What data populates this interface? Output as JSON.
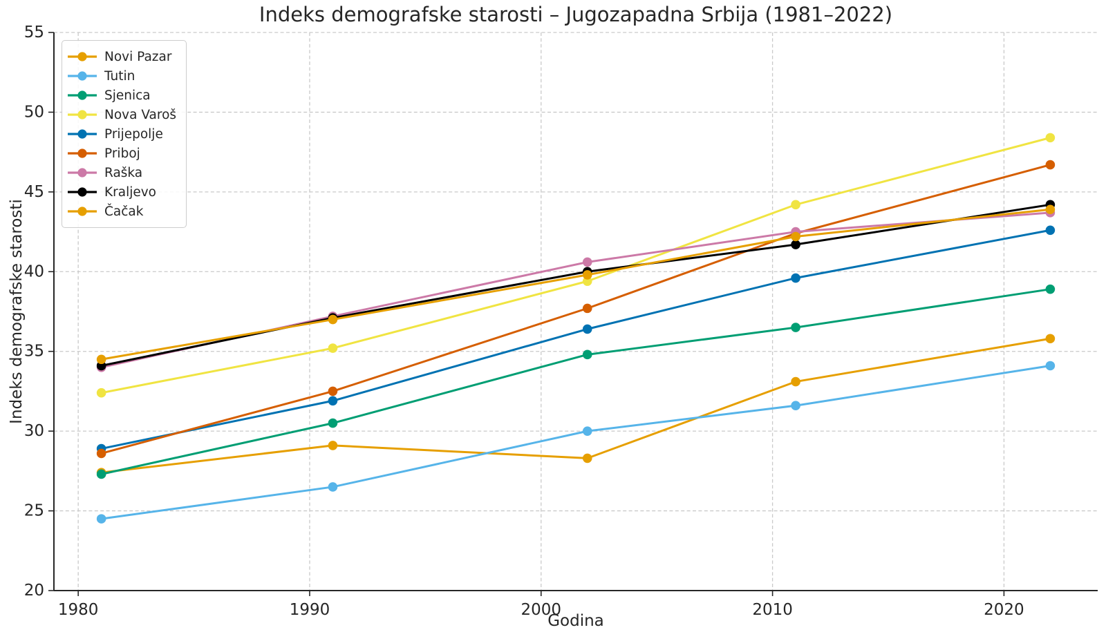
{
  "chart_data": {
    "type": "line",
    "title": "Indeks demografske starosti – Jugozapadna Srbija (1981–2022)",
    "xlabel": "Godina",
    "ylabel": "Indeks demografske starosti",
    "x": [
      1981,
      1991,
      2002,
      2011,
      2022
    ],
    "xticks": [
      "1980",
      "1990",
      "2000",
      "2010",
      "2020"
    ],
    "xtick_values": [
      1980,
      1990,
      2000,
      2010,
      2020
    ],
    "yticks": [
      "20",
      "25",
      "30",
      "35",
      "40",
      "45",
      "50",
      "55"
    ],
    "ytick_values": [
      20,
      25,
      30,
      35,
      40,
      45,
      50,
      55
    ],
    "xlim": [
      1978.95,
      2024.05
    ],
    "ylim": [
      20,
      55
    ],
    "grid": "dashed-both-axes",
    "legend_position": "upper-left",
    "series": [
      {
        "name": "Novi Pazar",
        "color": "#E69F00",
        "values": [
          27.4,
          29.1,
          28.3,
          33.1,
          35.8
        ]
      },
      {
        "name": "Tutin",
        "color": "#56B4E9",
        "values": [
          24.5,
          26.5,
          30.0,
          31.6,
          34.1
        ]
      },
      {
        "name": "Sjenica",
        "color": "#009E73",
        "values": [
          27.3,
          30.5,
          34.8,
          36.5,
          38.9
        ]
      },
      {
        "name": "Nova Varoš",
        "color": "#F0E442",
        "values": [
          32.4,
          35.2,
          39.4,
          44.2,
          48.4
        ]
      },
      {
        "name": "Prijepolje",
        "color": "#0072B2",
        "values": [
          28.9,
          31.9,
          36.4,
          39.6,
          42.6
        ]
      },
      {
        "name": "Priboj",
        "color": "#D55E00",
        "values": [
          28.6,
          32.5,
          37.7,
          42.4,
          46.7
        ]
      },
      {
        "name": "Raška",
        "color": "#CC79A7",
        "values": [
          34.0,
          37.2,
          40.6,
          42.5,
          43.7
        ]
      },
      {
        "name": "Kraljevo",
        "color": "#000000",
        "values": [
          34.1,
          37.1,
          40.0,
          41.7,
          44.2
        ]
      },
      {
        "name": "Čačak",
        "color": "#E69F00",
        "values": [
          34.5,
          37.0,
          39.8,
          42.2,
          43.9
        ]
      }
    ],
    "colors": {
      "grid": "#c9c9c9",
      "spine": "#262626",
      "text": "#262626",
      "background": "#ffffff"
    }
  }
}
